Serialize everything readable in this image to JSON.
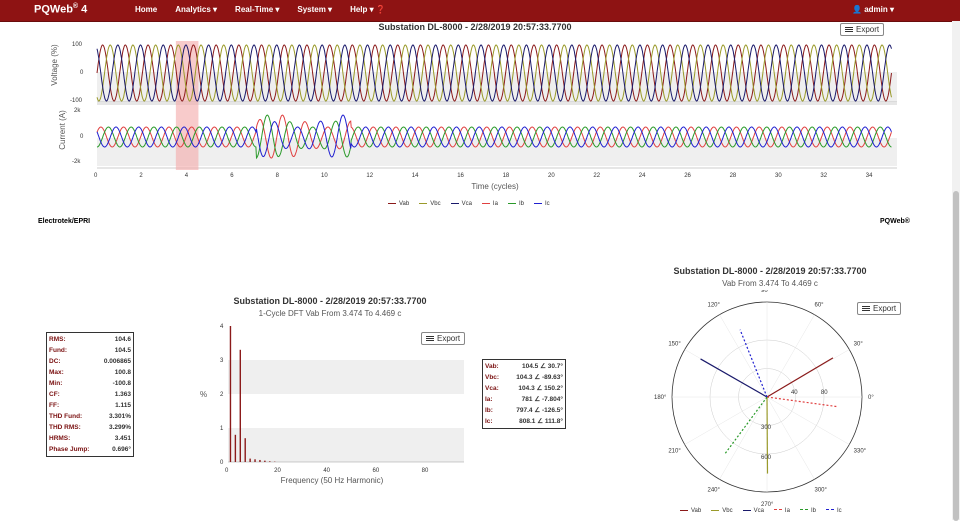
{
  "nav": {
    "brand": "PQWeb",
    "brand_sup": "®",
    "brand_version": "4",
    "items": [
      "Home",
      "Analytics ▾",
      "Real-Time ▾",
      "System ▾",
      "Help ▾ ❓"
    ],
    "user": "admin ▾"
  },
  "colors": {
    "Vab": "#8b1a1a",
    "Vbc": "#9a9a2a",
    "Vca": "#1a1a6b",
    "Ia": "#e04040",
    "Ib": "#2a9a2a",
    "Ic": "#2020d0"
  },
  "waveform": {
    "title": "Substation DL-8000 - 2/28/2019 20:57:33.7700",
    "export_label": "Export",
    "voltage_ylabel": "Voltage (%)",
    "current_ylabel": "Current (A)",
    "voltage_ticks": [
      "100",
      "0",
      "-100"
    ],
    "current_ticks": [
      "2k",
      "0",
      "-2k"
    ],
    "xlabel": "Time (cycles)",
    "xticks": [
      "0",
      "2",
      "4",
      "6",
      "8",
      "10",
      "12",
      "14",
      "16",
      "18",
      "20",
      "22",
      "24",
      "26",
      "28",
      "30",
      "32",
      "34"
    ],
    "legend": [
      "Vab",
      "Vbc",
      "Vca",
      "Ia",
      "Ib",
      "Ic"
    ],
    "highlight_start_cycle": 3.474,
    "highlight_end_cycle": 4.469
  },
  "footer": {
    "left": "Electrotek/EPRI",
    "right": "PQWeb®"
  },
  "stats": [
    [
      "RMS:",
      "104.6"
    ],
    [
      "Fund:",
      "104.5"
    ],
    [
      "DC:",
      "0.006865"
    ],
    [
      "Max:",
      "100.8"
    ],
    [
      "Min:",
      "-100.8"
    ],
    [
      "CF:",
      "1.363"
    ],
    [
      "FF:",
      "1.115"
    ],
    [
      "THD Fund:",
      "3.301%"
    ],
    [
      "THD RMS:",
      "3.299%"
    ],
    [
      "HRMS:",
      "3.451"
    ],
    [
      "Phase Jump:",
      "0.696°"
    ]
  ],
  "chart_data": [
    {
      "type": "bar",
      "title": "Substation DL-8000 - 2/28/2019 20:57:33.7700",
      "subtitle": "1-Cycle DFT Vab From 3.474 To 4.469 c",
      "xlabel": "Frequency (50 Hz Harmonic)",
      "ylabel": "%",
      "xlim": [
        0,
        96
      ],
      "ylim": [
        0,
        4
      ],
      "yticks": [
        "4",
        "3",
        "2",
        "1",
        "0"
      ],
      "xticks": [
        "0",
        "20",
        "40",
        "60",
        "80"
      ],
      "x": [
        1,
        3,
        5,
        7,
        9,
        11,
        13,
        15,
        17,
        19
      ],
      "values": [
        4.0,
        0.8,
        3.3,
        0.7,
        0.1,
        0.08,
        0.06,
        0.04,
        0.02,
        0.01
      ],
      "export_label": "Export"
    },
    {
      "type": "polar",
      "title": "Substation DL-8000 - 2/28/2019 20:57:33.7700",
      "subtitle": "Vab From 3.474 To 4.469 c",
      "angle_ticks": [
        "0°",
        "30°",
        "60°",
        "90°",
        "120°",
        "150°",
        "180°",
        "210°",
        "240°",
        "270°",
        "300°",
        "330°"
      ],
      "radial_ticks": [
        "300",
        "600"
      ],
      "current_radial_ticks": [
        "40",
        "80"
      ],
      "series": [
        {
          "name": "Vab",
          "magnitude": 104.5,
          "angle": 30.7
        },
        {
          "name": "Vbc",
          "magnitude": 104.3,
          "angle": -89.63
        },
        {
          "name": "Vca",
          "magnitude": 104.3,
          "angle": 150.2
        },
        {
          "name": "Ia",
          "magnitude": 781,
          "angle": -7.804
        },
        {
          "name": "Ib",
          "magnitude": 797.4,
          "angle": -126.5
        },
        {
          "name": "Ic",
          "magnitude": 808.1,
          "angle": 111.8
        }
      ],
      "export_label": "Export"
    }
  ],
  "phasor_table": [
    [
      "Vab:",
      "104.5 ∠ 30.7°"
    ],
    [
      "Vbc:",
      "104.3 ∠ -89.63°"
    ],
    [
      "Vca:",
      "104.3 ∠ 150.2°"
    ],
    [
      "Ia:",
      "781 ∠ -7.804°"
    ],
    [
      "Ib:",
      "797.4 ∠ -126.5°"
    ],
    [
      "Ic:",
      "808.1 ∠ 111.8°"
    ]
  ],
  "polar_legend": [
    "Vab",
    "Vbc",
    "Vca",
    "Ia",
    "Ib",
    "Ic"
  ]
}
